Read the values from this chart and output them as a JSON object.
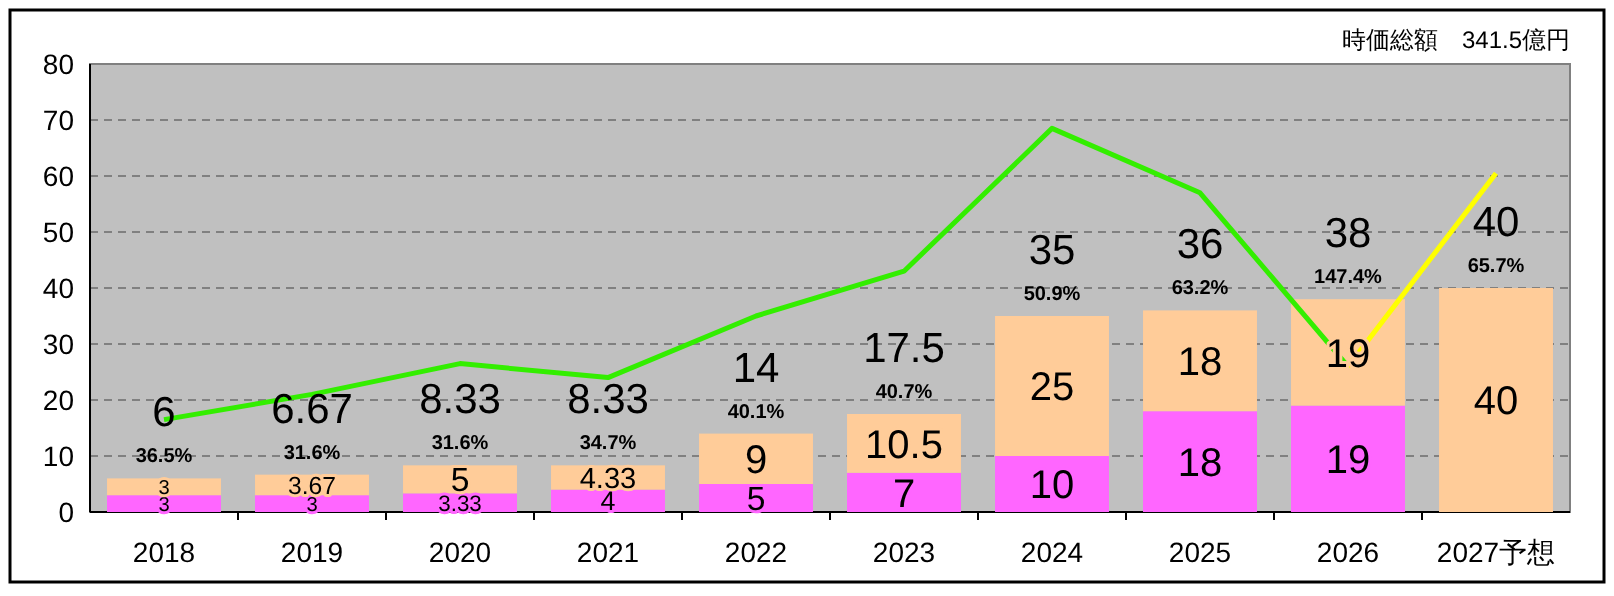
{
  "chart_data": {
    "type": "bar",
    "stacked": true,
    "grid": "y",
    "categories": [
      "2018",
      "2019",
      "2020",
      "2021",
      "2022",
      "2023",
      "2024",
      "2025",
      "2026",
      "2027予想"
    ],
    "ylim": [
      0,
      80
    ],
    "yticks": [
      0,
      10,
      20,
      30,
      40,
      50,
      60,
      70,
      80
    ],
    "totals": [
      "6",
      "6.67",
      "8.33",
      "8.33",
      "14",
      "17.5",
      "35",
      "36",
      "38",
      "40"
    ],
    "series": [
      {
        "color": "#ff66ff",
        "values": [
          3,
          3,
          3.33,
          4,
          5,
          7,
          10,
          18,
          19,
          null
        ],
        "value_labels": [
          "3",
          "3",
          "3.33",
          "4",
          "5",
          "7",
          "10",
          "18",
          "19",
          null
        ]
      },
      {
        "color": "#ffcc99",
        "values": [
          3,
          3.67,
          5,
          4.33,
          9,
          10.5,
          25,
          18,
          19,
          40
        ],
        "value_labels": [
          "3",
          "3.67",
          "5",
          "4.33",
          "9",
          "10.5",
          "25",
          "18",
          "19",
          "40"
        ]
      },
      {
        "type": "line",
        "color": "#33ee00",
        "values": [
          16.5,
          21,
          26.5,
          24,
          35,
          43,
          68.5,
          57,
          26,
          null
        ]
      },
      {
        "type": "line",
        "color": "#ffff00",
        "values": [
          null,
          null,
          null,
          null,
          null,
          null,
          null,
          null,
          26,
          60.5
        ]
      }
    ],
    "annotations": [
      "時価総額　341.5億円",
      "36.5%",
      "31.6%",
      "31.6%",
      "34.7%",
      "40.1%",
      "40.7%",
      "50.9%",
      "63.2%",
      "147.4%",
      "65.7%"
    ]
  }
}
